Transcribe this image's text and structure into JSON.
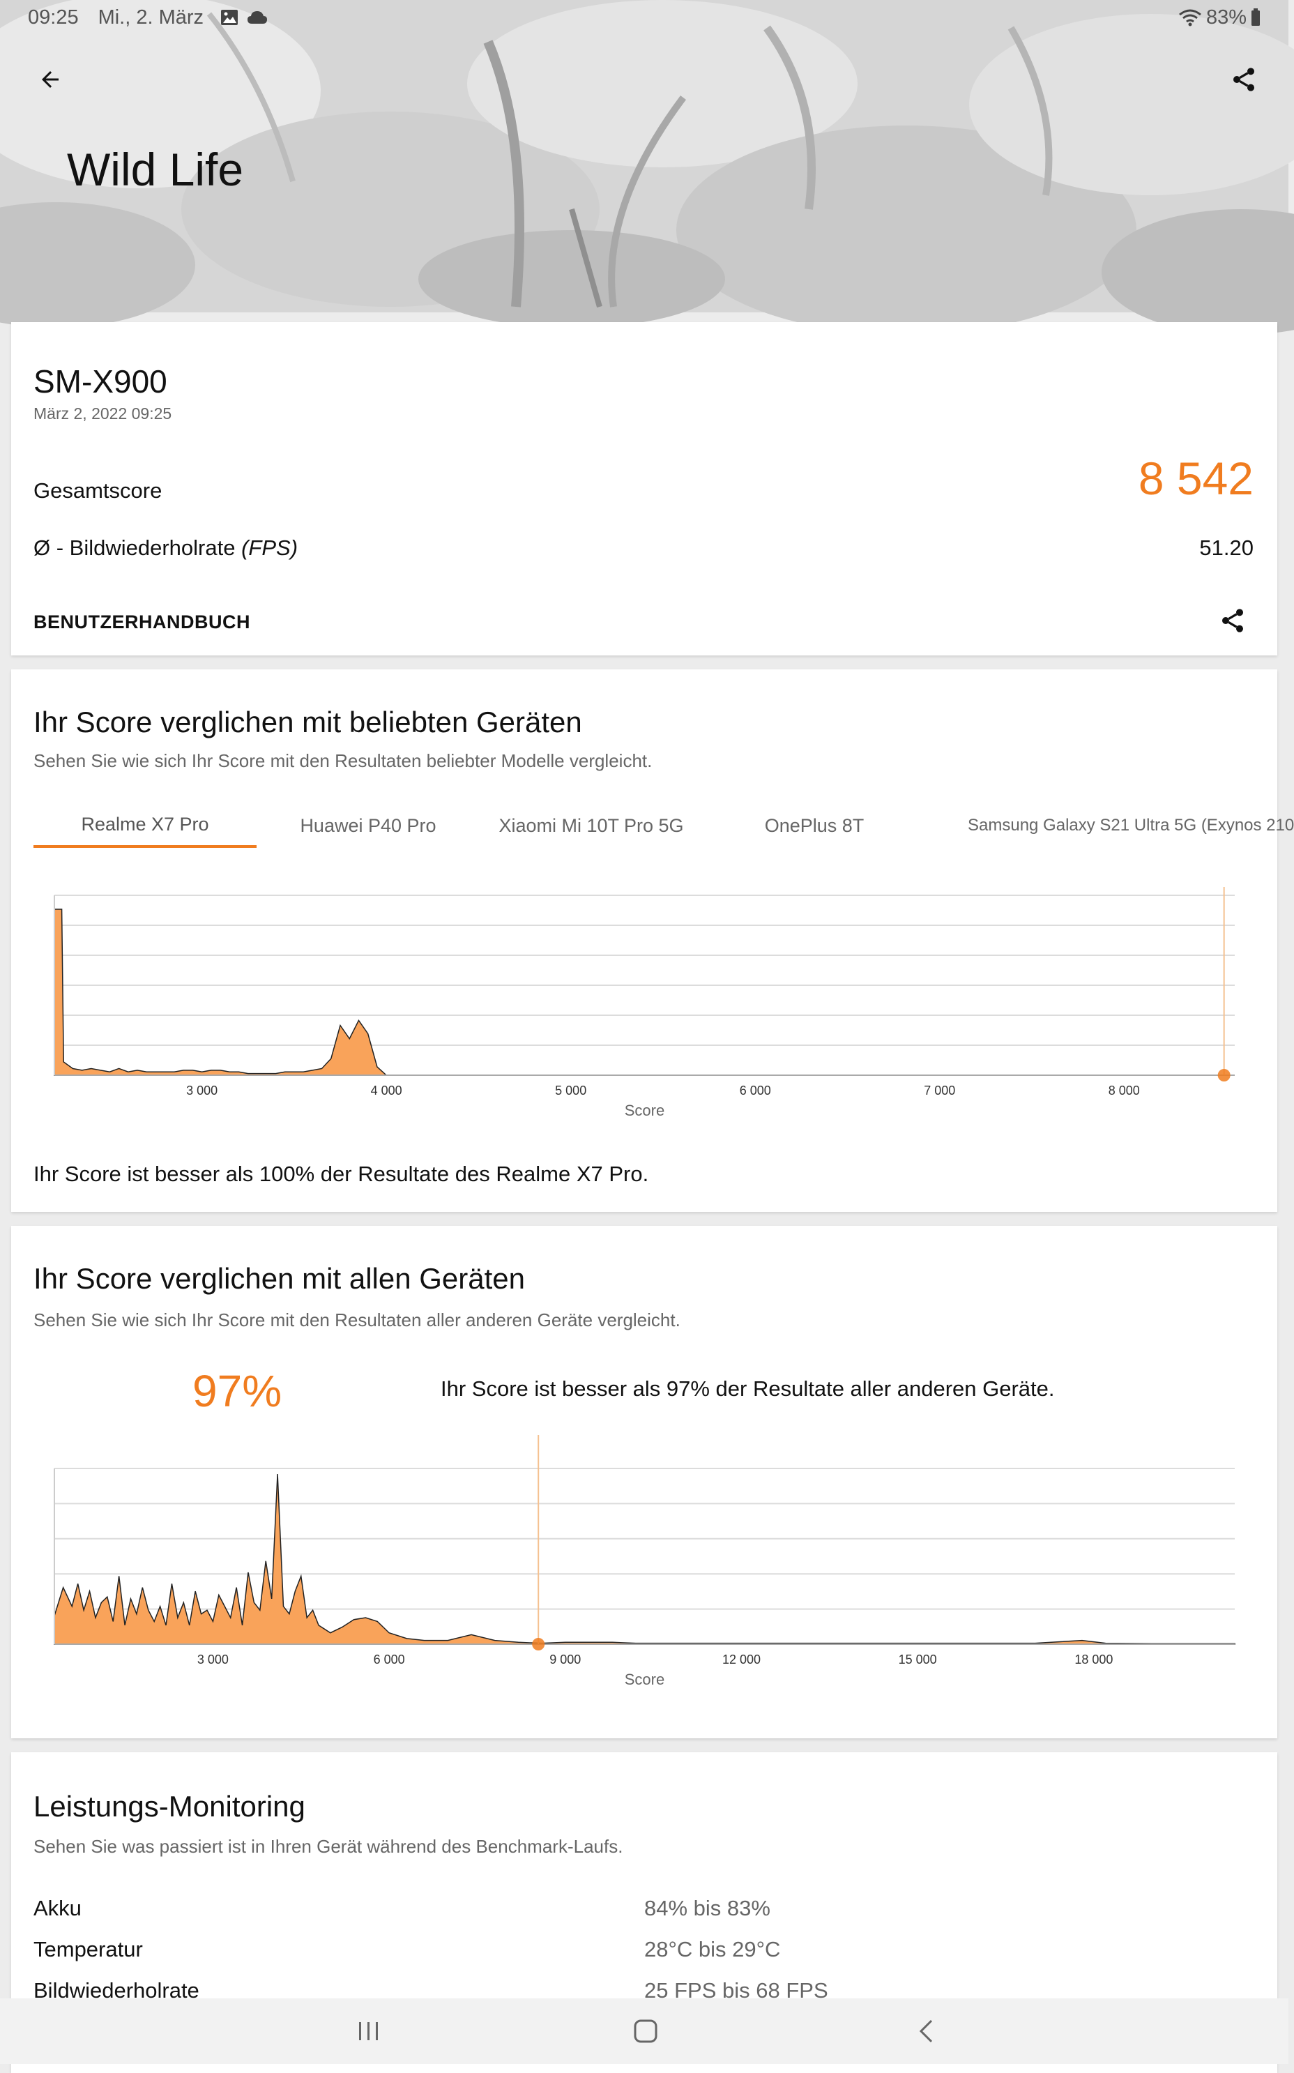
{
  "status": {
    "time": "09:25",
    "date": "Mi., 2. März",
    "battery": "83%"
  },
  "header": {
    "title": "Wild Life",
    "back_icon": "arrow-left-icon",
    "share_icon": "share-icon"
  },
  "result": {
    "device": "SM-X900",
    "date": "März 2, 2022 09:25",
    "score_label": "Gesamtscore",
    "score_value": "8 542",
    "fps_label": "Ø - Bildwiederholrate",
    "fps_unit": "(FPS)",
    "fps_value": "51.20",
    "manual_label": "BENUTZERHANDBUCH"
  },
  "popular": {
    "title": "Ihr Score verglichen mit beliebten Geräten",
    "subtitle": "Sehen Sie wie sich Ihr Score mit den Resultaten beliebter Modelle vergleicht.",
    "tabs": [
      "Realme X7 Pro",
      "Huawei P40 Pro",
      "Xiaomi Mi 10T Pro 5G",
      "OnePlus 8T",
      "Samsung Galaxy S21 Ultra 5G (Exynos 210"
    ],
    "active_tab": 0,
    "summary": "Ihr Score ist besser als 100% der Resultate des Realme X7 Pro."
  },
  "all": {
    "title": "Ihr Score verglichen mit allen Geräten",
    "subtitle": "Sehen Sie wie sich Ihr Score mit den Resultaten aller anderen Geräte vergleicht.",
    "percent": "97%",
    "summary": "Ihr Score ist besser als 97% der Resultate aller anderen Geräte."
  },
  "monitoring": {
    "title": "Leistungs-Monitoring",
    "subtitle": "Sehen Sie was passiert ist in Ihren Gerät während des Benchmark-Laufs.",
    "rows": [
      {
        "label": "Akku",
        "value": "84% bis 83%"
      },
      {
        "label": "Temperatur",
        "value": "28°C bis 29°C"
      },
      {
        "label": "Bildwiederholrate",
        "value": "25 FPS bis 68 FPS"
      }
    ]
  },
  "colors": {
    "accent": "#f07c1f",
    "fill": "#f9a35a"
  },
  "chart_data": [
    {
      "type": "area",
      "xlabel": "Score",
      "x_ticks": [
        "3 000",
        "4 000",
        "5 000",
        "6 000",
        "7 000",
        "8 000"
      ],
      "xlim": [
        2200,
        8600
      ],
      "x": [
        2200,
        2240,
        2250,
        2300,
        2350,
        2400,
        2450,
        2500,
        2550,
        2600,
        2650,
        2700,
        2750,
        2800,
        2850,
        2900,
        2950,
        3000,
        3050,
        3100,
        3150,
        3200,
        3250,
        3300,
        3350,
        3400,
        3450,
        3500,
        3550,
        3600,
        3650,
        3700,
        3750,
        3800,
        3850,
        3900,
        3950,
        4000,
        4050,
        4100
      ],
      "y": [
        100,
        100,
        8,
        4,
        3,
        4,
        3,
        2,
        4,
        2,
        3,
        2,
        2,
        2,
        2,
        3,
        3,
        2,
        3,
        3,
        2,
        2,
        1,
        1,
        1,
        1,
        2,
        2,
        2,
        3,
        4,
        10,
        30,
        22,
        33,
        25,
        5,
        0,
        0,
        0
      ],
      "series_color": "#f9a35a",
      "marker": {
        "score": 8542
      },
      "grid": true
    },
    {
      "type": "area",
      "xlabel": "Score",
      "x_ticks": [
        "3 000",
        "6 000",
        "9 000",
        "12 000",
        "15 000",
        "18 000"
      ],
      "xlim": [
        300,
        20400
      ],
      "x": [
        300,
        450,
        600,
        700,
        800,
        900,
        1000,
        1100,
        1200,
        1300,
        1400,
        1500,
        1600,
        1700,
        1800,
        1900,
        2000,
        2100,
        2200,
        2300,
        2400,
        2500,
        2600,
        2700,
        2800,
        2900,
        3000,
        3100,
        3200,
        3300,
        3400,
        3500,
        3600,
        3700,
        3800,
        3900,
        4000,
        4100,
        4200,
        4300,
        4400,
        4500,
        4600,
        4700,
        4800,
        4900,
        5000,
        5200,
        5400,
        5600,
        5800,
        6000,
        6300,
        6600,
        7000,
        7400,
        7800,
        8200,
        8600,
        9000,
        9400,
        9800,
        10200,
        11000,
        12000,
        13000,
        14000,
        15000,
        16000,
        17000,
        17800,
        18200,
        19000,
        20400
      ],
      "y": [
        15,
        30,
        20,
        32,
        18,
        28,
        14,
        22,
        25,
        12,
        36,
        10,
        24,
        16,
        30,
        18,
        12,
        20,
        10,
        32,
        14,
        22,
        10,
        28,
        16,
        18,
        12,
        26,
        20,
        14,
        30,
        10,
        38,
        22,
        18,
        44,
        24,
        90,
        20,
        16,
        28,
        36,
        14,
        18,
        10,
        8,
        6,
        9,
        13,
        14,
        12,
        6,
        3,
        2,
        2,
        5,
        2,
        1,
        0.5,
        1,
        1,
        1,
        0.5,
        0.5,
        0.5,
        0.5,
        0.5,
        0.5,
        0.5,
        0.5,
        2,
        0.5,
        0.3,
        0.3
      ],
      "series_color": "#f9a35a",
      "marker": {
        "score": 8542
      },
      "grid": true
    }
  ]
}
